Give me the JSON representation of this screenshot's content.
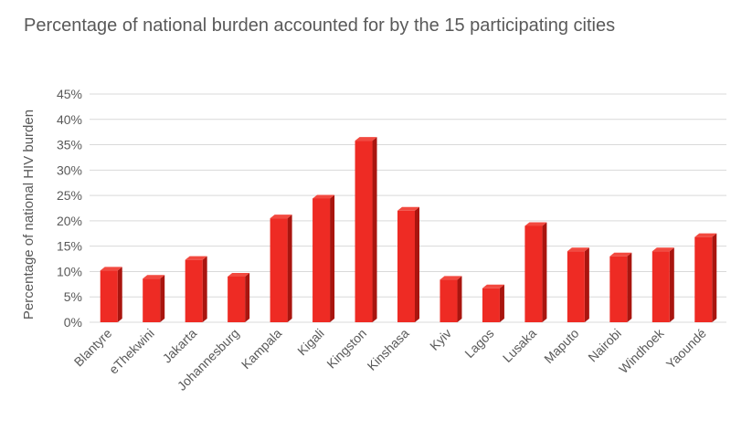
{
  "chart_data": {
    "type": "bar",
    "title": "Percentage of national burden accounted for by the 15 participating cities",
    "xlabel": "",
    "ylabel": "Percentage of national HIV burden",
    "categories": [
      "Blantyre",
      "eThekwini",
      "Jakarta",
      "Johannesburg",
      "Kampala",
      "Kigali",
      "Kingston",
      "Kinshasa",
      "Kyiv",
      "Lagos",
      "Lusaka",
      "Maputo",
      "Nairobi",
      "Windhoek",
      "Yaoundé"
    ],
    "values": [
      10.2,
      8.6,
      12.3,
      9.0,
      20.5,
      24.4,
      35.8,
      22.0,
      8.4,
      6.7,
      19.0,
      14.0,
      13.0,
      14.0,
      16.8
    ],
    "ylim": [
      0,
      45
    ],
    "yticks": [
      0,
      5,
      10,
      15,
      20,
      25,
      30,
      35,
      40,
      45
    ],
    "ytick_suffix": "%",
    "grid": true,
    "bar_color": "#ee2b24",
    "bar_side_color": "#a9150f",
    "bar_top_color": "#f24a40"
  }
}
